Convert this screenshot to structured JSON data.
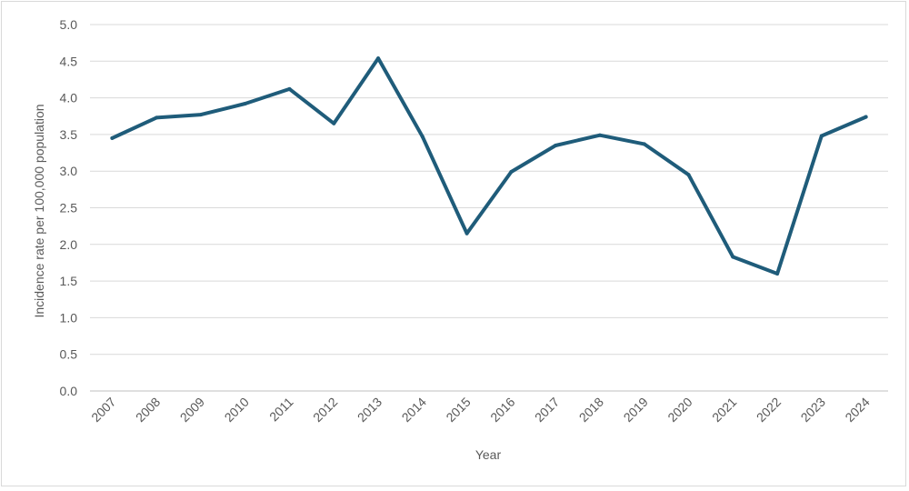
{
  "chart_data": {
    "type": "line",
    "xlabel": "Year",
    "ylabel": "Incidence rate per 100,000 population",
    "ylim": [
      0,
      5
    ],
    "yticks": [
      "0.0",
      "0.5",
      "1.0",
      "1.5",
      "2.0",
      "2.5",
      "3.0",
      "3.5",
      "4.0",
      "4.5",
      "5.0"
    ],
    "grid": true,
    "categories": [
      "2007",
      "2008",
      "2009",
      "2010",
      "2011",
      "2012",
      "2013",
      "2014",
      "2015",
      "2016",
      "2017",
      "2018",
      "2019",
      "2020",
      "2021",
      "2022",
      "2023",
      "2024"
    ],
    "series": [
      {
        "color": "#1f5c7a",
        "values": [
          3.45,
          3.73,
          3.77,
          3.92,
          4.12,
          3.65,
          4.54,
          3.47,
          2.15,
          2.99,
          3.35,
          3.49,
          3.37,
          2.95,
          1.83,
          1.6,
          3.48,
          3.74
        ]
      }
    ]
  }
}
